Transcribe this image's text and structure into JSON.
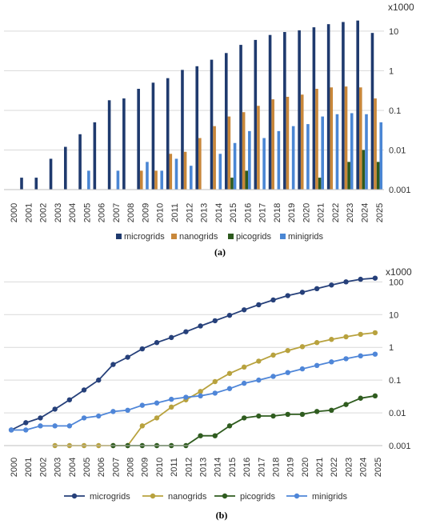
{
  "chart_data": [
    {
      "type": "bar",
      "caption": "(a)",
      "unit_label": "x1000",
      "yscale": "log",
      "ylim": [
        0.001,
        20
      ],
      "y_ticks": [
        {
          "v": 10,
          "t": "10"
        },
        {
          "v": 1,
          "t": "1"
        },
        {
          "v": 0.1,
          "t": "0.1"
        },
        {
          "v": 0.01,
          "t": "0.01"
        },
        {
          "v": 0.001,
          "t": "0.001"
        }
      ],
      "y_axis_position": "right",
      "legend_position": "bottom",
      "grid": true,
      "categories": [
        "2000",
        "2001",
        "2002",
        "2003",
        "2004",
        "2005",
        "2006",
        "2007",
        "2008",
        "2009",
        "2010",
        "2011",
        "2012",
        "2013",
        "2014",
        "2015",
        "2016",
        "2017",
        "2018",
        "2019",
        "2020",
        "2021",
        "2022",
        "2023",
        "2024",
        "2025"
      ],
      "series": [
        {
          "name": "microgrids",
          "color": "#1f3a6e",
          "values": [
            null,
            0.002,
            0.002,
            0.006,
            0.012,
            0.025,
            0.05,
            0.18,
            0.2,
            0.35,
            0.5,
            0.65,
            1.05,
            1.3,
            1.9,
            2.8,
            4.5,
            6,
            8,
            9.5,
            10.5,
            12.5,
            15,
            17,
            18.5,
            9
          ]
        },
        {
          "name": "nanogrids",
          "color": "#c8873a",
          "values": [
            null,
            null,
            null,
            null,
            null,
            null,
            null,
            null,
            null,
            0.003,
            0.003,
            0.008,
            0.009,
            0.02,
            0.04,
            0.07,
            0.09,
            0.13,
            0.19,
            0.22,
            0.25,
            0.35,
            0.38,
            0.4,
            0.38,
            0.2
          ]
        },
        {
          "name": "picogrids",
          "color": "#2d5a1e",
          "values": [
            null,
            null,
            null,
            null,
            null,
            null,
            null,
            null,
            null,
            null,
            null,
            null,
            null,
            null,
            null,
            0.002,
            0.003,
            null,
            null,
            null,
            null,
            0.002,
            null,
            0.005,
            0.01,
            0.005
          ]
        },
        {
          "name": "minigrids",
          "color": "#4a86d4",
          "values": [
            null,
            null,
            null,
            null,
            null,
            0.003,
            null,
            0.003,
            null,
            0.005,
            0.003,
            0.006,
            0.004,
            null,
            0.008,
            0.015,
            0.03,
            0.02,
            0.03,
            0.04,
            0.045,
            0.07,
            0.08,
            0.085,
            0.08,
            0.05
          ]
        }
      ]
    },
    {
      "type": "line",
      "caption": "(b)",
      "unit_label": "x1000",
      "yscale": "log",
      "ylim": [
        0.001,
        200
      ],
      "y_ticks": [
        {
          "v": 100,
          "t": "100"
        },
        {
          "v": 10,
          "t": "10"
        },
        {
          "v": 1,
          "t": "1"
        },
        {
          "v": 0.1,
          "t": "0.1"
        },
        {
          "v": 0.01,
          "t": "0.01"
        },
        {
          "v": 0.001,
          "t": "0.001"
        }
      ],
      "y_axis_position": "right",
      "legend_position": "bottom",
      "grid": true,
      "categories": [
        "2000",
        "2001",
        "2002",
        "2003",
        "2004",
        "2005",
        "2006",
        "2007",
        "2008",
        "2009",
        "2010",
        "2011",
        "2012",
        "2013",
        "2014",
        "2015",
        "2016",
        "2017",
        "2018",
        "2019",
        "2020",
        "2021",
        "2022",
        "2023",
        "2024",
        "2025"
      ],
      "series": [
        {
          "name": "microgrids",
          "color": "#26407a",
          "values": [
            0.003,
            0.005,
            0.007,
            0.013,
            0.025,
            0.05,
            0.1,
            0.3,
            0.5,
            0.9,
            1.4,
            2.0,
            3.0,
            4.5,
            6.5,
            9.5,
            14,
            20,
            28,
            38,
            48,
            62,
            80,
            100,
            120,
            130
          ]
        },
        {
          "name": "nanogrids",
          "color": "#b8a23e",
          "values": [
            null,
            null,
            null,
            0.001,
            0.001,
            0.001,
            0.001,
            0.001,
            0.001,
            0.004,
            0.007,
            0.015,
            0.025,
            0.045,
            0.09,
            0.16,
            0.25,
            0.38,
            0.58,
            0.8,
            1.05,
            1.4,
            1.75,
            2.1,
            2.5,
            2.8
          ]
        },
        {
          "name": "picogrids",
          "color": "#2f5c1f",
          "values": [
            null,
            null,
            null,
            null,
            null,
            null,
            null,
            0.001,
            0.001,
            0.001,
            0.001,
            0.001,
            0.001,
            0.002,
            0.002,
            0.004,
            0.007,
            0.008,
            0.008,
            0.009,
            0.009,
            0.011,
            0.012,
            0.018,
            0.028,
            0.033
          ]
        },
        {
          "name": "minigrids",
          "color": "#4f86d8",
          "values": [
            0.003,
            0.003,
            0.004,
            0.004,
            0.004,
            0.007,
            0.008,
            0.011,
            0.012,
            0.017,
            0.02,
            0.026,
            0.03,
            0.033,
            0.04,
            0.055,
            0.08,
            0.1,
            0.13,
            0.17,
            0.22,
            0.28,
            0.36,
            0.45,
            0.55,
            0.62
          ]
        }
      ]
    }
  ]
}
